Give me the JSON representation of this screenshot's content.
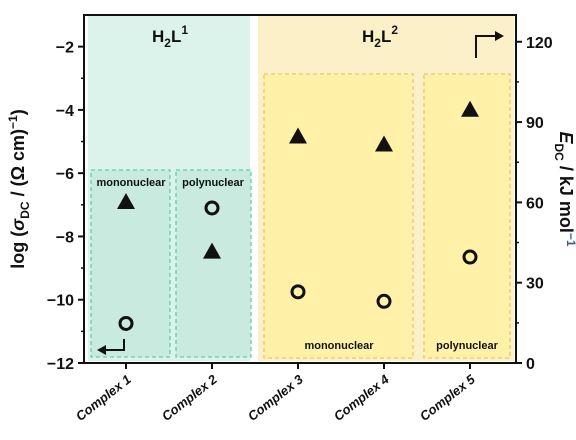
{
  "chart_data": {
    "type": "scatter",
    "categories": [
      "Complex 1",
      "Complex 2",
      "Complex 3",
      "Complex 4",
      "Complex 5"
    ],
    "ylabel_left_parts": [
      "log (",
      "σ",
      "DC",
      " / (Ω cm)",
      "−1",
      ")"
    ],
    "ylabel_right_parts": [
      "E",
      "DC",
      " / kJ mol",
      "−1"
    ],
    "ylim_left": [
      -12,
      -1
    ],
    "ylim_right": [
      0,
      130
    ],
    "yticks_left": [
      -12,
      -10,
      -8,
      -6,
      -4,
      -2
    ],
    "yticks_right": [
      0,
      30,
      60,
      90,
      120
    ],
    "series": [
      {
        "axis": "left",
        "marker": "open-circle",
        "values": [
          -10.75,
          -7.1,
          -9.75,
          -10.05,
          -8.65
        ]
      },
      {
        "axis": "right",
        "marker": "filled-triangle",
        "values": [
          60.5,
          42,
          85,
          82,
          95
        ]
      }
    ],
    "groups": [
      {
        "title": [
          "H",
          "2",
          "L",
          "1"
        ],
        "color": "#dcf3ec"
      },
      {
        "title": [
          "H",
          "2",
          "L",
          "2"
        ],
        "color": "#fbf0c8"
      }
    ],
    "subgroups": [
      {
        "label": "mononuclear",
        "color": "#c9eadf",
        "border": "#5fcfb4"
      },
      {
        "label": "polynuclear",
        "color": "#c9eadf",
        "border": "#5fcfb4"
      },
      {
        "label": "mononuclear",
        "color": "#fff2a8",
        "border": "#e8c86a"
      },
      {
        "label": "polynuclear",
        "color": "#fff2a8",
        "border": "#e8c86a"
      }
    ],
    "superscript_color": "#3b5aa8"
  }
}
